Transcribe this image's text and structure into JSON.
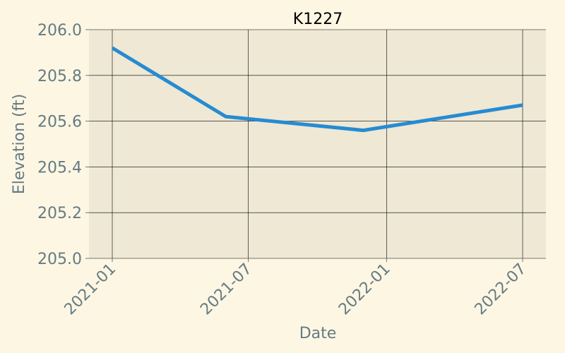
{
  "chart_data": {
    "type": "line",
    "title": "K1227",
    "xlabel": "Date",
    "ylabel": "Elevation (ft)",
    "x": [
      "2021-01-01",
      "2021-06-01",
      "2021-12-01",
      "2022-07-01"
    ],
    "series": [
      {
        "values": [
          205.92,
          205.62,
          205.56,
          205.67
        ]
      }
    ],
    "xlim": [
      "2020-12-01",
      "2022-08-01"
    ],
    "ylim": [
      205.0,
      206.0
    ],
    "yticks": [
      205.0,
      205.2,
      205.4,
      205.6,
      205.8,
      206.0
    ],
    "ytick_labels": [
      "205.0",
      "205.2",
      "205.4",
      "205.6",
      "205.8",
      "206.0"
    ],
    "xticks": [
      "2021-01-01",
      "2021-07-01",
      "2022-01-01",
      "2022-07-01"
    ],
    "xtick_labels": [
      "2021-01",
      "2021-07",
      "2022-01",
      "2022-07"
    ],
    "grid": true,
    "legend": "none",
    "colors": {
      "background": "#fdf6e3",
      "plot_area": "#eee8d5",
      "line": "#268bd2",
      "grid": "#000000",
      "text": "#657b83"
    }
  }
}
